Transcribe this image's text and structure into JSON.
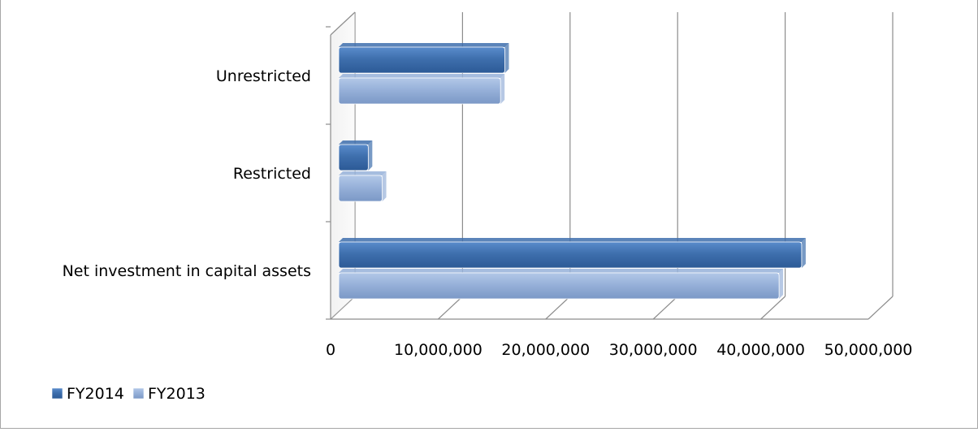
{
  "chart_data": {
    "type": "bar",
    "orientation": "horizontal",
    "style": "3d-clustered",
    "categories": [
      "Unrestricted",
      "Restricted",
      "Net investment in capital assets"
    ],
    "series": [
      {
        "name": "FY2014",
        "color": "#3e6fad",
        "values": [
          16200000,
          3500000,
          43800000
        ]
      },
      {
        "name": "FY2013",
        "color": "#97b1d9",
        "values": [
          15800000,
          4800000,
          41700000
        ]
      }
    ],
    "xlim": [
      0,
      50000000
    ],
    "xticks": [
      0,
      10000000,
      20000000,
      30000000,
      40000000,
      50000000
    ],
    "xtick_labels": [
      "0",
      "10,000,000",
      "20,000,000",
      "30,000,000",
      "40,000,000",
      "50,000,000"
    ],
    "grid": true,
    "legend_position": "bottom-left"
  }
}
